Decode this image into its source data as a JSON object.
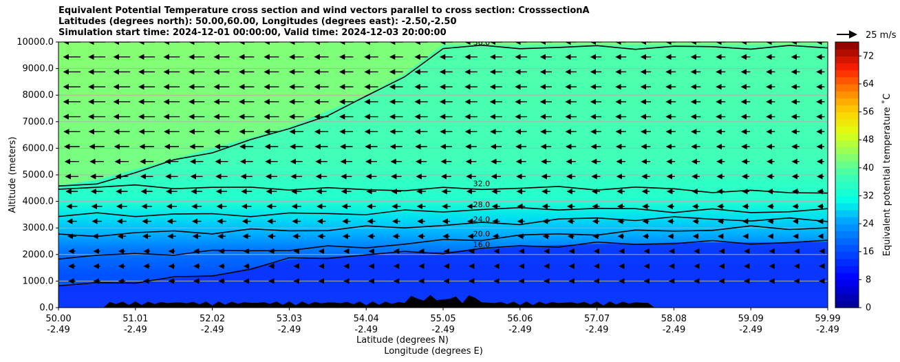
{
  "chart_data": {
    "type": "heatmap",
    "title_lines": [
      "Equivalent Potential Temperature cross section and wind vectors parallel to cross section: CrosssectionA",
      "Latitudes (degrees north): 50.00,60.00, Longitudes (degrees east): -2.50,-2.50",
      "Simulation start time: 2024-12-01 00:00:00, Valid time: 2024-12-03 20:00:00"
    ],
    "ylabel": "Altitude (meters)",
    "xlabel_lines": [
      "Latitude (degrees N)",
      "Longitude (degrees E)"
    ],
    "ylim": [
      0,
      10000
    ],
    "y_ticks": [
      "0.0",
      "1000.0",
      "2000.0",
      "3000.0",
      "4000.0",
      "5000.0",
      "6000.0",
      "7000.0",
      "8000.0",
      "9000.0",
      "10000.0"
    ],
    "x_ticks": [
      {
        "lat": "50.00",
        "lon": "-2.49"
      },
      {
        "lat": "51.01",
        "lon": "-2.49"
      },
      {
        "lat": "52.02",
        "lon": "-2.49"
      },
      {
        "lat": "53.03",
        "lon": "-2.49"
      },
      {
        "lat": "54.04",
        "lon": "-2.49"
      },
      {
        "lat": "55.05",
        "lon": "-2.49"
      },
      {
        "lat": "56.06",
        "lon": "-2.49"
      },
      {
        "lat": "57.07",
        "lon": "-2.49"
      },
      {
        "lat": "58.08",
        "lon": "-2.49"
      },
      {
        "lat": "59.09",
        "lon": "-2.49"
      },
      {
        "lat": "59.99",
        "lon": "-2.49"
      }
    ],
    "grid": "horizontal",
    "colorbar": {
      "label": "Equivalent potential temperature ˚C",
      "range": [
        0,
        76
      ],
      "tick_values": [
        0,
        8,
        16,
        24,
        32,
        40,
        48,
        56,
        64,
        72
      ],
      "colormap": "jet"
    },
    "contours": [
      {
        "value": 16,
        "label": "16.0",
        "heights": [
          800,
          900,
          1000,
          1100,
          1200,
          1500,
          1800,
          1900,
          2000,
          2050,
          2100,
          2200,
          2300,
          2350,
          2400,
          2400,
          2450,
          2450,
          2450,
          2450,
          2480
        ]
      },
      {
        "value": 20,
        "label": "20.0",
        "heights": [
          1900,
          1950,
          2000,
          2050,
          2100,
          2150,
          2200,
          2250,
          2300,
          2400,
          2500,
          2600,
          2700,
          2750,
          2800,
          2850,
          2900,
          2950,
          3000,
          3000,
          3000
        ]
      },
      {
        "value": 24,
        "label": "24.0",
        "heights": [
          2700,
          2750,
          2800,
          2850,
          2850,
          2900,
          2900,
          2950,
          3000,
          3050,
          3100,
          3150,
          3200,
          3300,
          3350,
          3350,
          3350,
          3350,
          3300,
          3300,
          3300
        ]
      },
      {
        "value": 28,
        "label": "28.0",
        "heights": [
          3450,
          3500,
          3500,
          3500,
          3500,
          3500,
          3500,
          3550,
          3550,
          3600,
          3650,
          3700,
          3700,
          3750,
          3700,
          3700,
          3650,
          3650,
          3600,
          3650,
          3650
        ]
      },
      {
        "value": 32,
        "label": "32.0",
        "heights": [
          4500,
          4550,
          4550,
          4550,
          4500,
          4500,
          4500,
          4450,
          4450,
          4450,
          4450,
          4500,
          4500,
          4500,
          4500,
          4500,
          4450,
          4400,
          4350,
          4350,
          4350
        ]
      },
      {
        "value": 36,
        "label": "36.0",
        "heights": [
          4500,
          4700,
          5100,
          5500,
          5900,
          6300,
          6700,
          7300,
          7900,
          8700,
          9800,
          9800,
          9800,
          9800,
          9800,
          9800,
          9800,
          9800,
          9800,
          9800,
          9800
        ]
      }
    ],
    "wind_reference": {
      "label": "25 m/s",
      "speed": 25
    },
    "wind_columns": 31,
    "wind_rows": 17
  }
}
